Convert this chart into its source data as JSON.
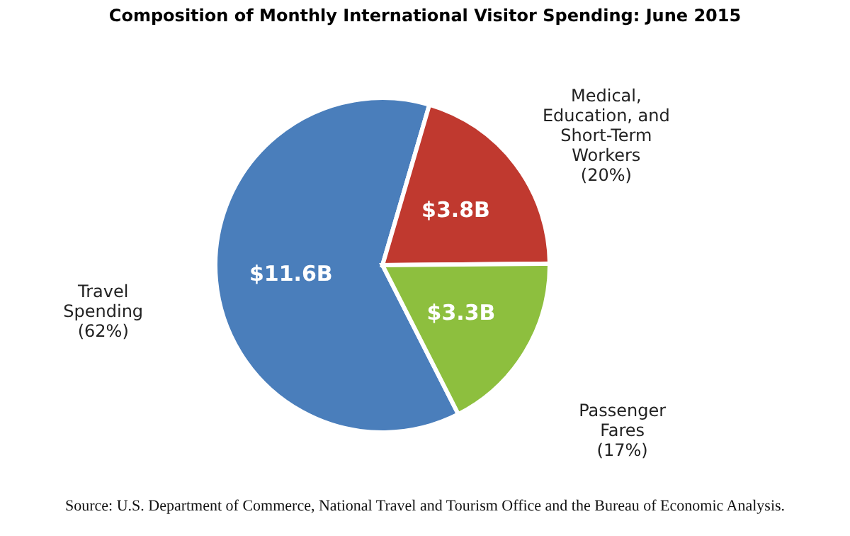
{
  "chart_data": {
    "type": "pie",
    "title": "Composition of Monthly International Visitor Spending: June 2015",
    "categories": [
      "Travel\nSpending\n(62%)",
      "Medical,\nEducation, and\nShort-Term\nWorkers\n(20%)",
      "Passenger\nFares\n(17%)"
    ],
    "values": [
      11.6,
      3.8,
      3.3
    ],
    "value_labels": [
      "$11.6B",
      "$3.8B",
      "$3.3B"
    ],
    "colors": [
      "#4a7ebb",
      "#c0392f",
      "#8dbf3e"
    ],
    "legend": false,
    "annotations": [
      "Source: U.S. Department of Commerce,  National Travel and Tourism Office and the Bureau of Economic Analysis."
    ]
  }
}
